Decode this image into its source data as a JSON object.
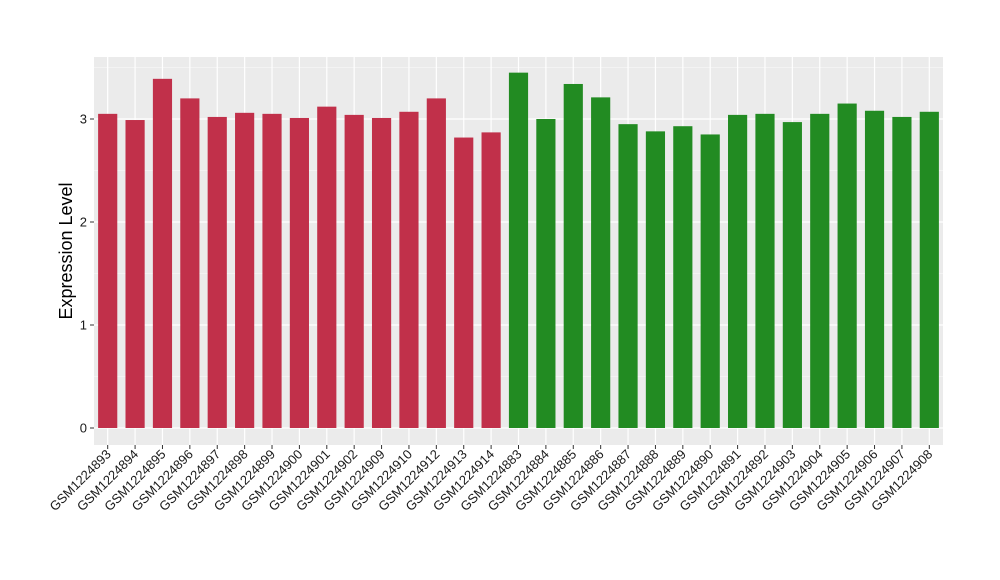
{
  "chart_data": {
    "type": "bar",
    "title": "",
    "xlabel": "",
    "ylabel": "Expression Level",
    "ylim": [
      0,
      3.6
    ],
    "yticks": [
      0,
      1,
      2,
      3
    ],
    "grid": true,
    "panel_background": "#EBEBEB",
    "categories": [
      "GSM1224893",
      "GSM1224894",
      "GSM1224895",
      "GSM1224896",
      "GSM1224897",
      "GSM1224898",
      "GSM1224899",
      "GSM1224900",
      "GSM1224901",
      "GSM1224902",
      "GSM1224909",
      "GSM1224910",
      "GSM1224912",
      "GSM1224913",
      "GSM1224914",
      "GSM1224883",
      "GSM1224884",
      "GSM1224885",
      "GSM1224886",
      "GSM1224887",
      "GSM1224888",
      "GSM1224889",
      "GSM1224890",
      "GSM1224891",
      "GSM1224892",
      "GSM1224903",
      "GSM1224904",
      "GSM1224905",
      "GSM1224906",
      "GSM1224907",
      "GSM1224908"
    ],
    "values": [
      3.05,
      2.99,
      3.39,
      3.2,
      3.02,
      3.06,
      3.05,
      3.01,
      3.12,
      3.04,
      3.01,
      3.07,
      3.2,
      2.82,
      2.87,
      3.45,
      3.0,
      3.34,
      3.21,
      2.95,
      2.88,
      2.93,
      2.85,
      3.04,
      3.05,
      2.97,
      3.05,
      3.15,
      3.08,
      3.02,
      3.07
    ],
    "bar_colors": [
      "#C1304A",
      "#C1304A",
      "#C1304A",
      "#C1304A",
      "#C1304A",
      "#C1304A",
      "#C1304A",
      "#C1304A",
      "#C1304A",
      "#C1304A",
      "#C1304A",
      "#C1304A",
      "#C1304A",
      "#C1304A",
      "#C1304A",
      "#228B22",
      "#228B22",
      "#228B22",
      "#228B22",
      "#228B22",
      "#228B22",
      "#228B22",
      "#228B22",
      "#228B22",
      "#228B22",
      "#228B22",
      "#228B22",
      "#228B22",
      "#228B22",
      "#228B22",
      "#228B22"
    ]
  }
}
